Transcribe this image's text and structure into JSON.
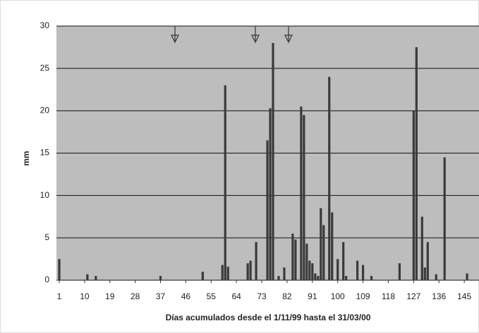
{
  "chart_data": {
    "type": "bar",
    "x_label": "Días acumulados desde el 1/11/99 hasta el 31/03/00",
    "y_label": "mm",
    "x": [
      1,
      11,
      14,
      37,
      52,
      59,
      60,
      61,
      68,
      69,
      71,
      75,
      76,
      77,
      79,
      81,
      84,
      85,
      87,
      88,
      89,
      90,
      91,
      92,
      93,
      94,
      95,
      97,
      98,
      100,
      102,
      103,
      107,
      109,
      112,
      122,
      127,
      128,
      130,
      131,
      132,
      135,
      138,
      146
    ],
    "values": [
      2.5,
      0.7,
      0.5,
      0.5,
      1.0,
      1.8,
      23.0,
      1.6,
      2.0,
      2.3,
      4.5,
      16.5,
      20.3,
      28.0,
      0.5,
      1.5,
      5.5,
      4.8,
      20.5,
      19.5,
      4.3,
      2.3,
      2.0,
      0.8,
      0.5,
      8.5,
      6.5,
      24.0,
      8.0,
      2.5,
      4.5,
      0.5,
      2.3,
      1.8,
      0.5,
      2.0,
      20.0,
      27.5,
      7.5,
      1.5,
      4.5,
      0.7,
      14.5,
      0.8
    ],
    "color": "#3a3a3a",
    "xlim": [
      1,
      154
    ],
    "xticks": [
      1,
      10,
      19,
      28,
      37,
      46,
      55,
      64,
      73,
      82,
      91,
      100,
      109,
      118,
      127,
      136,
      145,
      154
    ],
    "ylim": [
      0,
      30
    ],
    "yticks": [
      0,
      5,
      10,
      15,
      20,
      25,
      30
    ],
    "grid": true
  }
}
